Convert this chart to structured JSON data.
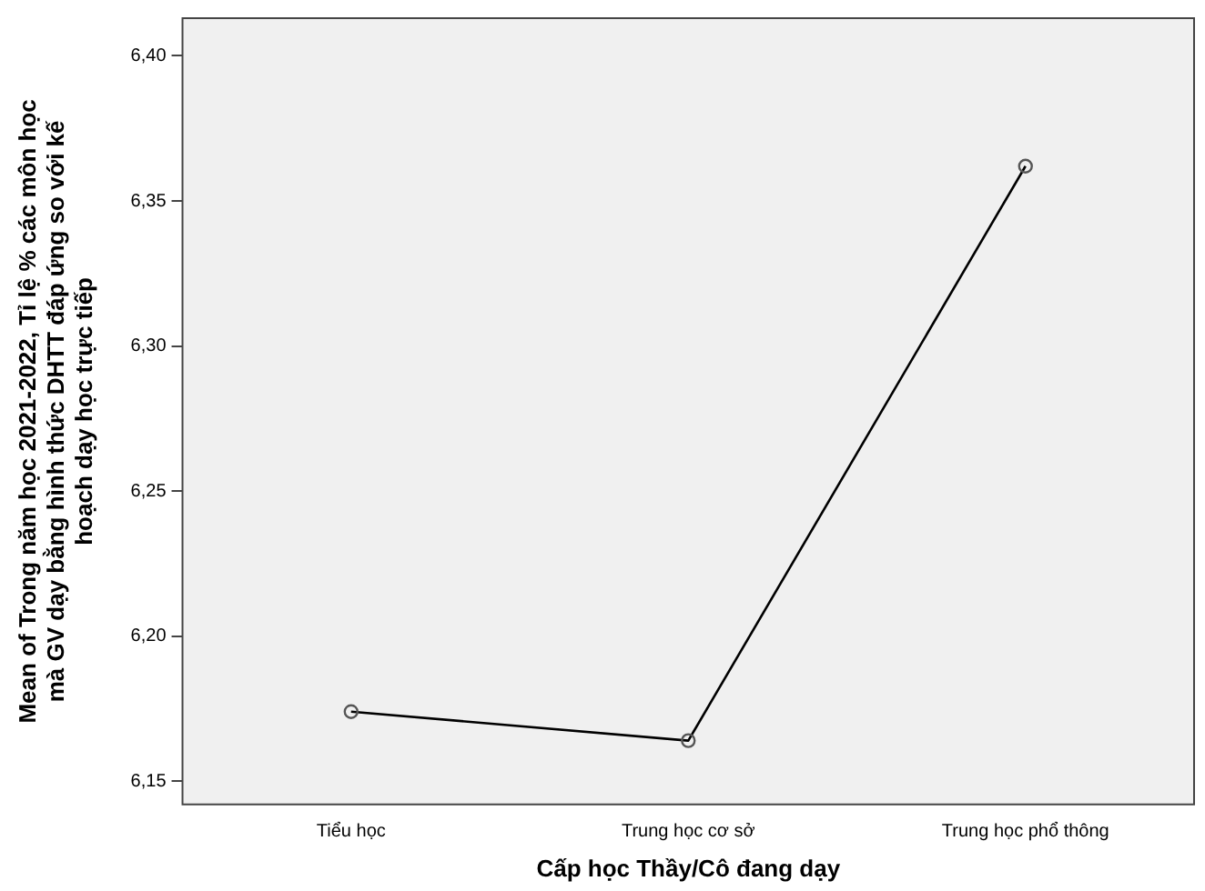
{
  "chart_data": {
    "type": "line",
    "xlabel": "Cấp học Thầy/Cô đang dạy",
    "ylabel": "Mean of Trong năm học 2021-2022, Tỉ lệ % các môn học mà GV dạy bằng hình thức DHTT đáp ứng so với kế hoạch dạy học trực tiếp",
    "categories": [
      "Tiểu học",
      "Trung học cơ sở",
      "Trung học phổ thông"
    ],
    "series": [
      {
        "color": "#000000",
        "values": [
          6.174,
          6.164,
          6.362
        ]
      }
    ],
    "ylim": [
      6.142,
      6.413
    ],
    "yticks": [
      {
        "value": 6.15,
        "label": "6,15"
      },
      {
        "value": 6.2,
        "label": "6,20"
      },
      {
        "value": 6.25,
        "label": "6,25"
      },
      {
        "value": 6.3,
        "label": "6,30"
      },
      {
        "value": 6.35,
        "label": "6,35"
      },
      {
        "value": 6.4,
        "label": "6,40"
      }
    ],
    "grid": false,
    "legend": false,
    "marker": "circle",
    "line_style": "solid"
  }
}
